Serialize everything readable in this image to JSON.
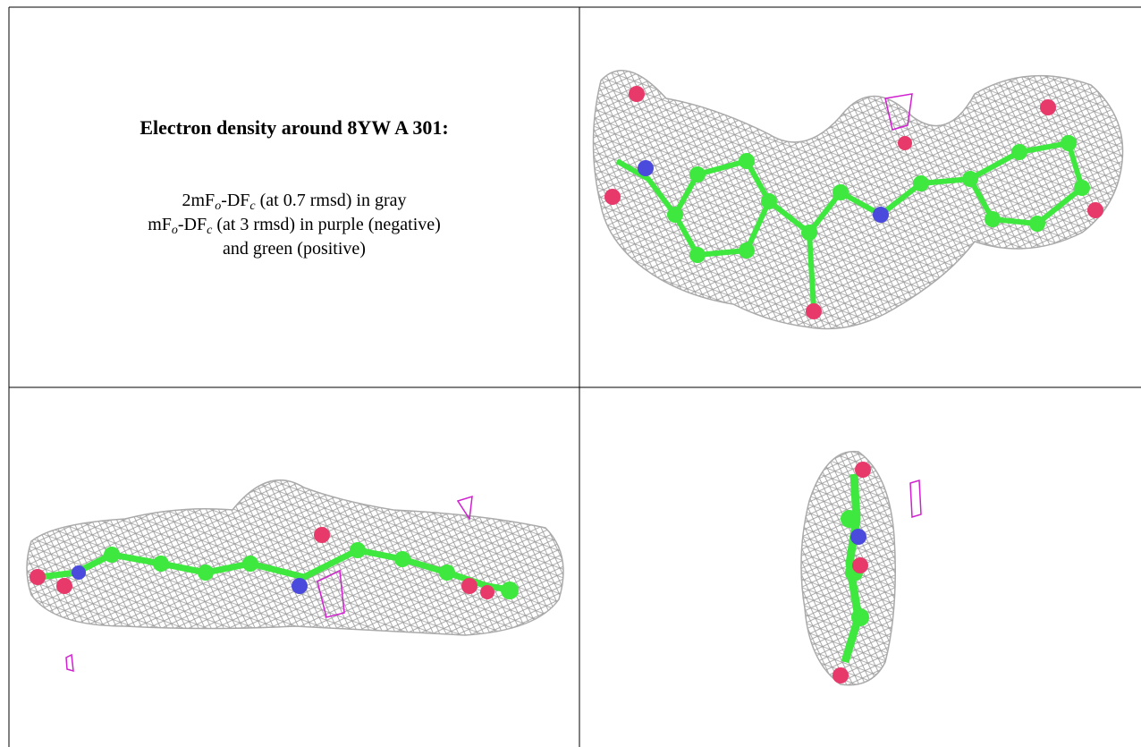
{
  "caption": {
    "title": "Electron density around 8YW A 301:",
    "lines": [
      [
        "2mF",
        "o",
        "-DF",
        "c",
        " (at 0.7 rmsd) in gray"
      ],
      [
        "mF",
        "o",
        "-DF",
        "c",
        " (at 3 rmsd) in purple (negative)"
      ],
      [
        "and green (positive)"
      ]
    ]
  }
}
